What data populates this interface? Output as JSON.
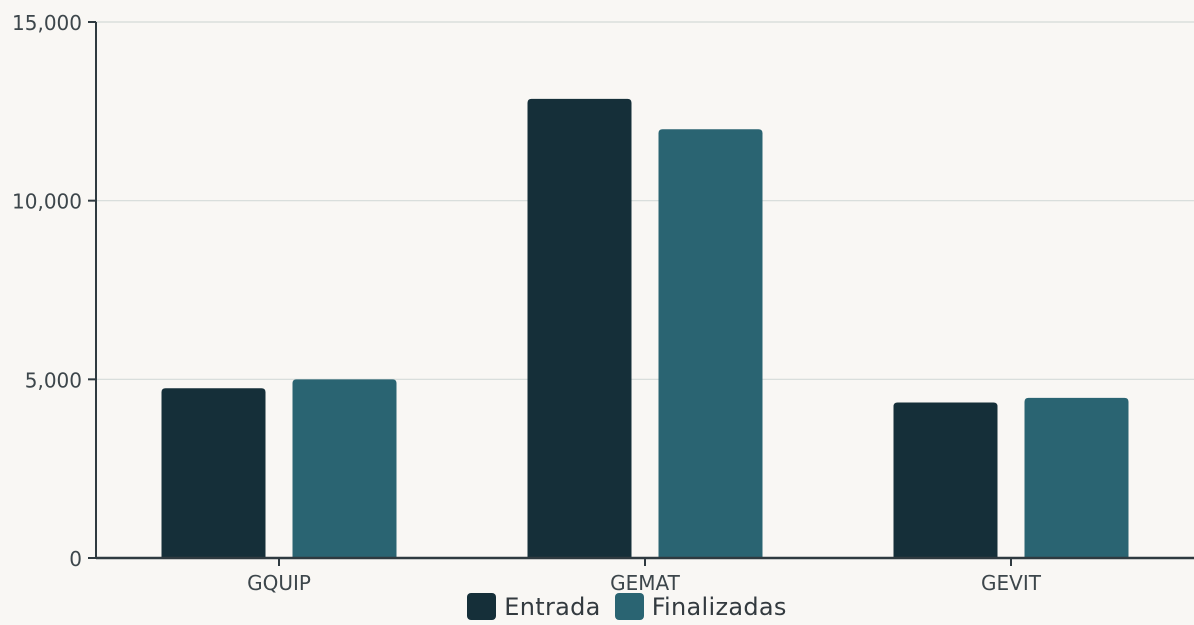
{
  "chart_data": {
    "type": "bar",
    "categories": [
      "GQUIP",
      "GEMAT",
      "GEVIT"
    ],
    "series": [
      {
        "name": "Entrada",
        "values": [
          4750,
          12850,
          4350
        ],
        "color": "#152f39"
      },
      {
        "name": "Finalizadas",
        "values": [
          5000,
          12000,
          4480
        ],
        "color": "#2a6472"
      }
    ],
    "y_ticks": [
      "0",
      "5,000",
      "10,000",
      "15,000"
    ],
    "ylim": [
      0,
      15000
    ],
    "grid": true,
    "legend": "bottom-center",
    "title": "",
    "xlabel": "",
    "ylabel": ""
  }
}
